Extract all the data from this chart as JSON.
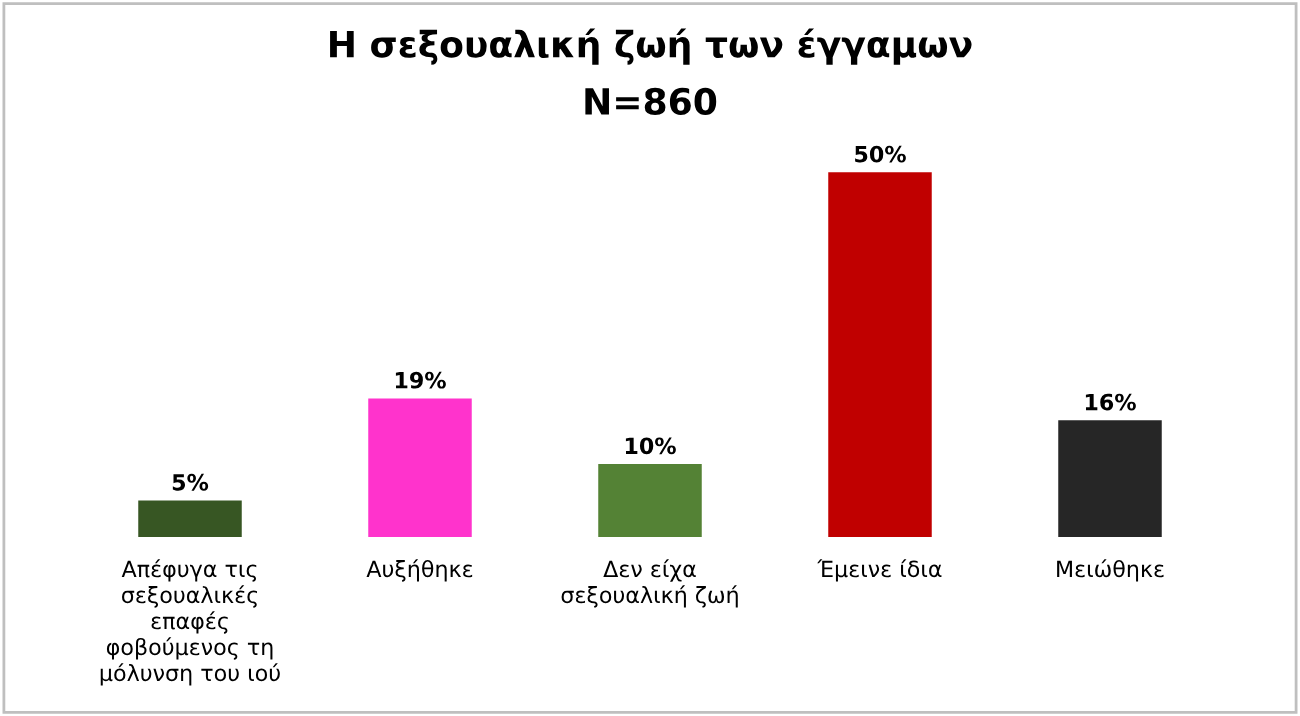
{
  "chart_data": {
    "type": "bar",
    "title": "Η σεξουαλική ζωή των έγγαμων",
    "subtitle": "N=860",
    "categories": [
      "Απέφυγα τις\nσεξουαλικές\nεπαφές\nφοβούμενος τη\nμόλυνση του ιού",
      "Αυξήθηκε",
      "Δεν είχα\nσεξουαλική ζωή",
      "Έμεινε ίδια",
      "Μειώθηκε"
    ],
    "values": [
      5,
      19,
      10,
      50,
      16
    ],
    "value_labels": [
      "5%",
      "19%",
      "10%",
      "50%",
      "16%"
    ],
    "colors": [
      "#375623",
      "#ff33cc",
      "#548235",
      "#c00000",
      "#262626"
    ],
    "grid": false,
    "legend": false
  }
}
